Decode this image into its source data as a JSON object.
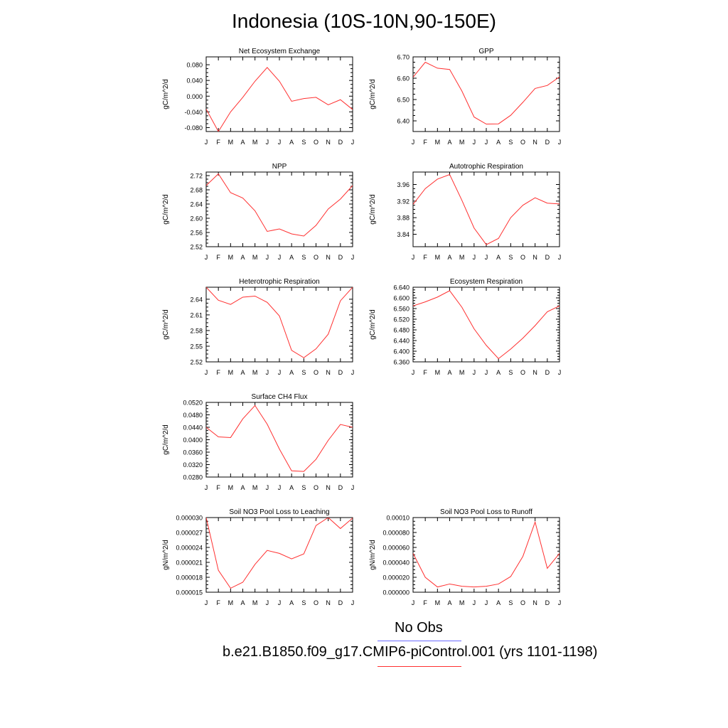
{
  "figure": {
    "title": "Indonesia (10S-10N,90-150E)",
    "legend": {
      "obs_label": "No Obs",
      "obs_color": "#6b6bff",
      "model_label": "b.e21.B1850.f09_g17.CMIP6-piControl.001 (yrs 1101-1198)",
      "model_color": "#ff3030"
    }
  },
  "chart_data": [
    {
      "type": "line",
      "panel": "net-ecosystem-exchange",
      "title": "Net Ecosystem Exchange",
      "xlabel": "",
      "ylabel": "gC/m^2/d",
      "categories": [
        "J",
        "F",
        "M",
        "A",
        "M",
        "J",
        "J",
        "A",
        "S",
        "O",
        "N",
        "D",
        "J"
      ],
      "ylim": [
        -0.09,
        0.1
      ],
      "yticks": [
        -0.08,
        -0.04,
        0.0,
        0.04,
        0.08
      ],
      "ytick_labels": [
        "-0.080",
        "-0.040",
        "0.000",
        "0.040",
        "0.080"
      ],
      "series": [
        {
          "values": [
            -0.033,
            -0.09,
            -0.04,
            -0.003,
            0.038,
            0.073,
            0.038,
            -0.013,
            -0.006,
            -0.003,
            -0.022,
            -0.009,
            -0.034
          ]
        }
      ]
    },
    {
      "type": "line",
      "panel": "gpp",
      "title": "GPP",
      "xlabel": "",
      "ylabel": "gC/m^2/d",
      "categories": [
        "J",
        "F",
        "M",
        "A",
        "M",
        "J",
        "J",
        "A",
        "S",
        "O",
        "N",
        "D",
        "J"
      ],
      "ylim": [
        6.35,
        6.7
      ],
      "yticks": [
        6.4,
        6.5,
        6.6,
        6.7
      ],
      "ytick_labels": [
        "6.40",
        "6.50",
        "6.60",
        "6.70"
      ],
      "series": [
        {
          "values": [
            6.605,
            6.675,
            6.647,
            6.641,
            6.54,
            6.418,
            6.385,
            6.386,
            6.426,
            6.487,
            6.552,
            6.566,
            6.606
          ]
        }
      ]
    },
    {
      "type": "line",
      "panel": "npp",
      "title": "NPP",
      "xlabel": "",
      "ylabel": "gC/m^2/d",
      "categories": [
        "J",
        "F",
        "M",
        "A",
        "M",
        "J",
        "J",
        "A",
        "S",
        "O",
        "N",
        "D",
        "J"
      ],
      "ylim": [
        2.52,
        2.73
      ],
      "yticks": [
        2.52,
        2.56,
        2.6,
        2.64,
        2.68,
        2.72
      ],
      "ytick_labels": [
        "2.52",
        "2.56",
        "2.60",
        "2.64",
        "2.68",
        "2.72"
      ],
      "series": [
        {
          "values": [
            2.692,
            2.725,
            2.672,
            2.657,
            2.621,
            2.563,
            2.57,
            2.556,
            2.55,
            2.58,
            2.626,
            2.654,
            2.692
          ]
        }
      ]
    },
    {
      "type": "line",
      "panel": "autotrophic-respiration",
      "title": "Autotrophic Respiration",
      "xlabel": "",
      "ylabel": "gC/m^2/d",
      "categories": [
        "J",
        "F",
        "M",
        "A",
        "M",
        "J",
        "J",
        "A",
        "S",
        "O",
        "N",
        "D",
        "J"
      ],
      "ylim": [
        3.81,
        3.99
      ],
      "yticks": [
        3.84,
        3.88,
        3.92,
        3.96
      ],
      "ytick_labels": [
        "3.84",
        "3.88",
        "3.92",
        "3.96"
      ],
      "series": [
        {
          "values": [
            3.912,
            3.95,
            3.973,
            3.984,
            3.922,
            3.855,
            3.815,
            3.83,
            3.88,
            3.91,
            3.928,
            3.915,
            3.913
          ]
        }
      ]
    },
    {
      "type": "line",
      "panel": "heterotrophic-respiration",
      "title": "Heterotrophic Respiration",
      "xlabel": "",
      "ylabel": "gC/m^2/d",
      "categories": [
        "J",
        "F",
        "M",
        "A",
        "M",
        "J",
        "J",
        "A",
        "S",
        "O",
        "N",
        "D",
        "J"
      ],
      "ylim": [
        2.52,
        2.663
      ],
      "yticks": [
        2.52,
        2.55,
        2.58,
        2.61,
        2.64
      ],
      "ytick_labels": [
        "2.52",
        "2.55",
        "2.58",
        "2.61",
        "2.64"
      ],
      "series": [
        {
          "values": [
            2.663,
            2.638,
            2.63,
            2.644,
            2.646,
            2.634,
            2.608,
            2.542,
            2.528,
            2.545,
            2.573,
            2.637,
            2.663
          ]
        }
      ]
    },
    {
      "type": "line",
      "panel": "ecosystem-respiration",
      "title": "Ecosystem Respiration",
      "xlabel": "",
      "ylabel": "gC/m^2/d",
      "categories": [
        "J",
        "F",
        "M",
        "A",
        "M",
        "J",
        "J",
        "A",
        "S",
        "O",
        "N",
        "D",
        "J"
      ],
      "ylim": [
        6.36,
        6.64
      ],
      "yticks": [
        6.36,
        6.4,
        6.44,
        6.48,
        6.52,
        6.56,
        6.6,
        6.64
      ],
      "ytick_labels": [
        "6.360",
        "6.400",
        "6.440",
        "6.480",
        "6.520",
        "6.560",
        "6.600",
        "6.640"
      ],
      "series": [
        {
          "values": [
            6.57,
            6.585,
            6.603,
            6.627,
            6.565,
            6.484,
            6.422,
            6.372,
            6.408,
            6.449,
            6.496,
            6.548,
            6.57
          ]
        }
      ]
    },
    {
      "type": "line",
      "panel": "surface-ch4-flux",
      "title": "Surface CH4 Flux",
      "xlabel": "",
      "ylabel": "gC/m^2/d",
      "categories": [
        "J",
        "F",
        "M",
        "A",
        "M",
        "J",
        "J",
        "A",
        "S",
        "O",
        "N",
        "D",
        "J"
      ],
      "ylim": [
        0.028,
        0.052
      ],
      "yticks": [
        0.028,
        0.032,
        0.036,
        0.04,
        0.044,
        0.048,
        0.052
      ],
      "ytick_labels": [
        "0.0280",
        "0.0320",
        "0.0360",
        "0.0400",
        "0.0440",
        "0.0480",
        "0.0520"
      ],
      "series": [
        {
          "values": [
            0.044,
            0.0409,
            0.0407,
            0.0467,
            0.051,
            0.045,
            0.037,
            0.03,
            0.0298,
            0.0337,
            0.0398,
            0.0449,
            0.044
          ]
        }
      ]
    },
    {
      "type": "line",
      "panel": "soil-no3-leaching",
      "title": "Soil NO3 Pool Loss to Leaching",
      "xlabel": "",
      "ylabel": "gN/m^2/d",
      "categories": [
        "J",
        "F",
        "M",
        "A",
        "M",
        "J",
        "J",
        "A",
        "S",
        "O",
        "N",
        "D",
        "J"
      ],
      "ylim": [
        1.5e-05,
        3e-05
      ],
      "yticks": [
        1.5e-05,
        1.8e-05,
        2.1e-05,
        2.4e-05,
        2.7e-05,
        3e-05
      ],
      "ytick_labels": [
        "0.000015",
        "0.000018",
        "0.000021",
        "0.000024",
        "0.000027",
        "0.000030"
      ],
      "series": [
        {
          "values": [
            3e-05,
            1.94e-05,
            1.58e-05,
            1.7e-05,
            2.06e-05,
            2.34e-05,
            2.28e-05,
            2.17e-05,
            2.27e-05,
            2.84e-05,
            3e-05,
            2.78e-05,
            2.99e-05
          ]
        }
      ]
    },
    {
      "type": "line",
      "panel": "soil-no3-runoff",
      "title": "Soil NO3 Pool Loss to Runoff",
      "xlabel": "",
      "ylabel": "gN/m^2/d",
      "categories": [
        "J",
        "F",
        "M",
        "A",
        "M",
        "J",
        "J",
        "A",
        "S",
        "O",
        "N",
        "D",
        "J"
      ],
      "ylim": [
        0.0,
        0.0001
      ],
      "yticks": [
        0.0,
        2e-05,
        4e-05,
        6e-05,
        8e-05,
        0.0001
      ],
      "ytick_labels": [
        "0.000000",
        "0.000020",
        "0.000040",
        "0.000060",
        "0.000080",
        "0.00010"
      ],
      "series": [
        {
          "values": [
            5.2e-05,
            2e-05,
            7e-06,
            1.1e-05,
            8e-06,
            7e-06,
            8e-06,
            1.1e-05,
            2.1e-05,
            4.8e-05,
            9.4e-05,
            3.2e-05,
            5.2e-05
          ]
        }
      ]
    }
  ]
}
